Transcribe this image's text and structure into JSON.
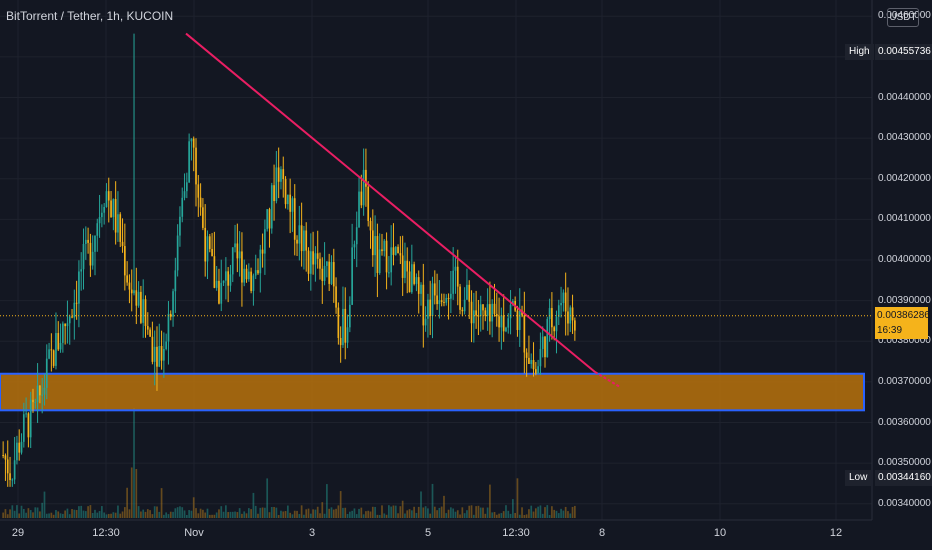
{
  "header": {
    "title": "BitTorrent / Tether, 1h, KUCOIN",
    "currency": "USDT"
  },
  "price_axis": {
    "labels": [
      "0.00460000",
      "0.00450000",
      "0.00440000",
      "0.00430000",
      "0.00420000",
      "0.00410000",
      "0.00400000",
      "0.00390000",
      "0.00380000",
      "0.00370000",
      "0.00360000",
      "0.00350000",
      "0.00340000"
    ],
    "high_tag": "High",
    "high_value": "0.00455736",
    "low_tag": "Low",
    "low_value": "0.00344160",
    "current_price": "0.00386286",
    "countdown": "16:39"
  },
  "time_axis": {
    "labels": [
      "29",
      "12:30",
      "Nov",
      "3",
      "5",
      "12:30",
      "8",
      "10",
      "12"
    ]
  },
  "colors": {
    "background": "#131722",
    "up": "#26a69a",
    "down": "#f5b31b",
    "trendline": "#e91e63",
    "zone_fill": "#b8720c",
    "zone_border": "#2962ff",
    "price_line": "#f5b31b"
  },
  "chart_data": {
    "type": "candlestick",
    "ylim": [
      0.00336,
      0.00464
    ],
    "high": 0.00455736,
    "low": 0.0034416,
    "last": 0.00386286,
    "support_zone": [
      0.00363,
      0.00372
    ],
    "trendline": [
      [
        0,
        0.00455736
      ],
      [
        1,
        0.00368
      ]
    ],
    "close_path": [
      0.00352,
      0.00348,
      0.00355,
      0.0036,
      0.00362,
      0.00368,
      0.00375,
      0.0038,
      0.00385,
      0.0039,
      0.00398,
      0.00402,
      0.0041,
      0.00418,
      0.00412,
      0.00405,
      0.00395,
      0.0039,
      0.00385,
      0.0038,
      0.00378,
      0.00385,
      0.00398,
      0.00418,
      0.0043,
      0.00415,
      0.00402,
      0.00395,
      0.00392,
      0.00398,
      0.004,
      0.00398,
      0.00396,
      0.00402,
      0.0041,
      0.00424,
      0.00418,
      0.0041,
      0.00405,
      0.004,
      0.00398,
      0.00395,
      0.004,
      0.00382,
      0.00385,
      0.0041,
      0.00418,
      0.00405,
      0.00398,
      0.00402,
      0.004,
      0.00398,
      0.00396,
      0.0039,
      0.00388,
      0.00392,
      0.00394,
      0.00395,
      0.00393,
      0.0039,
      0.00388,
      0.00386,
      0.00384,
      0.00385,
      0.00386,
      0.00388,
      0.00385,
      0.00378,
      0.00372,
      0.0038,
      0.00385,
      0.0039,
      0.00388,
      0.00386
    ]
  }
}
